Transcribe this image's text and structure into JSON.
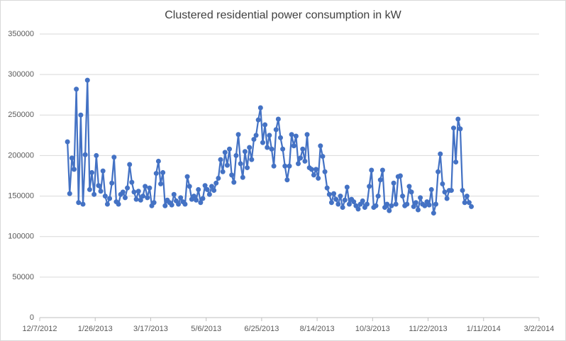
{
  "chart_data": {
    "type": "line",
    "title": "Clustered residential power consumption in kW",
    "x": [
      "1/1/2013",
      "1/3/2013",
      "1/5/2013",
      "1/7/2013",
      "1/9/2013",
      "1/11/2013",
      "1/13/2013",
      "1/15/2013",
      "1/17/2013",
      "1/19/2013",
      "1/21/2013",
      "1/23/2013",
      "1/25/2013",
      "1/27/2013",
      "1/29/2013",
      "1/31/2013",
      "2/2/2013",
      "2/4/2013",
      "2/6/2013",
      "2/8/2013",
      "2/10/2013",
      "2/12/2013",
      "2/14/2013",
      "2/16/2013",
      "2/18/2013",
      "2/20/2013",
      "2/22/2013",
      "2/24/2013",
      "2/26/2013",
      "2/28/2013",
      "3/2/2013",
      "3/4/2013",
      "3/6/2013",
      "3/8/2013",
      "3/10/2013",
      "3/12/2013",
      "3/14/2013",
      "3/16/2013",
      "3/18/2013",
      "3/20/2013",
      "3/22/2013",
      "3/24/2013",
      "3/26/2013",
      "3/28/2013",
      "3/30/2013",
      "4/1/2013",
      "4/3/2013",
      "4/5/2013",
      "4/7/2013",
      "4/9/2013",
      "4/11/2013",
      "4/13/2013",
      "4/15/2013",
      "4/17/2013",
      "4/19/2013",
      "4/21/2013",
      "4/23/2013",
      "4/25/2013",
      "4/27/2013",
      "4/29/2013",
      "5/1/2013",
      "5/3/2013",
      "5/5/2013",
      "5/7/2013",
      "5/9/2013",
      "5/11/2013",
      "5/13/2013",
      "5/15/2013",
      "5/17/2013",
      "5/19/2013",
      "5/21/2013",
      "5/23/2013",
      "5/25/2013",
      "5/27/2013",
      "5/29/2013",
      "5/31/2013",
      "6/2/2013",
      "6/4/2013",
      "6/6/2013",
      "6/8/2013",
      "6/10/2013",
      "6/12/2013",
      "6/14/2013",
      "6/16/2013",
      "6/18/2013",
      "6/20/2013",
      "6/22/2013",
      "6/24/2013",
      "6/26/2013",
      "6/28/2013",
      "6/30/2013",
      "7/2/2013",
      "7/4/2013",
      "7/6/2013",
      "7/8/2013",
      "7/10/2013",
      "7/12/2013",
      "7/14/2013",
      "7/16/2013",
      "7/18/2013",
      "7/20/2013",
      "7/22/2013",
      "7/24/2013",
      "7/26/2013",
      "7/28/2013",
      "7/30/2013",
      "8/1/2013",
      "8/3/2013",
      "8/5/2013",
      "8/7/2013",
      "8/9/2013",
      "8/11/2013",
      "8/13/2013",
      "8/15/2013",
      "8/17/2013",
      "8/19/2013",
      "8/21/2013",
      "8/23/2013",
      "8/25/2013",
      "8/27/2013",
      "8/29/2013",
      "8/31/2013",
      "9/2/2013",
      "9/4/2013",
      "9/6/2013",
      "9/8/2013",
      "9/10/2013",
      "9/12/2013",
      "9/14/2013",
      "9/16/2013",
      "9/18/2013",
      "9/20/2013",
      "9/22/2013",
      "9/24/2013",
      "9/26/2013",
      "9/28/2013",
      "9/30/2013",
      "10/2/2013",
      "10/4/2013",
      "10/6/2013",
      "10/8/2013",
      "10/10/2013",
      "10/12/2013",
      "10/14/2013",
      "10/16/2013",
      "10/18/2013",
      "10/20/2013",
      "10/22/2013",
      "10/24/2013",
      "10/26/2013",
      "10/28/2013",
      "10/30/2013",
      "11/1/2013",
      "11/3/2013",
      "11/5/2013",
      "11/7/2013",
      "11/9/2013",
      "11/11/2013",
      "11/13/2013",
      "11/15/2013",
      "11/17/2013",
      "11/19/2013",
      "11/21/2013",
      "11/23/2013",
      "11/25/2013",
      "11/27/2013",
      "11/29/2013",
      "12/1/2013",
      "12/3/2013",
      "12/5/2013",
      "12/7/2013",
      "12/9/2013",
      "12/11/2013",
      "12/13/2013",
      "12/15/2013",
      "12/17/2013",
      "12/19/2013",
      "12/21/2013",
      "12/23/2013",
      "12/25/2013",
      "12/27/2013",
      "12/29/2013",
      "12/31/2013"
    ],
    "values": [
      217000,
      153000,
      197000,
      183000,
      282000,
      142000,
      250000,
      140000,
      201000,
      293000,
      158000,
      179000,
      152000,
      200000,
      163000,
      156000,
      181000,
      150000,
      140000,
      147000,
      166000,
      198000,
      143000,
      140000,
      152000,
      155000,
      148000,
      160000,
      189000,
      167000,
      155000,
      146000,
      156000,
      145000,
      150000,
      162000,
      148000,
      160000,
      138000,
      142000,
      178000,
      193000,
      165000,
      179000,
      138000,
      145000,
      142000,
      139000,
      152000,
      144000,
      140000,
      148000,
      143000,
      140000,
      174000,
      162000,
      146000,
      150000,
      145000,
      158000,
      142000,
      147000,
      163000,
      158000,
      152000,
      162000,
      157000,
      166000,
      172000,
      195000,
      180000,
      204000,
      188000,
      208000,
      176000,
      167000,
      200000,
      226000,
      190000,
      173000,
      205000,
      185000,
      210000,
      195000,
      220000,
      225000,
      244000,
      259000,
      216000,
      238000,
      210000,
      225000,
      208000,
      187000,
      232000,
      245000,
      222000,
      208000,
      187000,
      170000,
      187000,
      226000,
      212000,
      224000,
      190000,
      197000,
      208000,
      193000,
      226000,
      185000,
      183000,
      176000,
      183000,
      172000,
      212000,
      199000,
      180000,
      160000,
      152000,
      142000,
      153000,
      146000,
      140000,
      150000,
      136000,
      145000,
      161000,
      140000,
      146000,
      143000,
      138000,
      134000,
      140000,
      144000,
      136000,
      140000,
      162000,
      182000,
      136000,
      138000,
      150000,
      170000,
      182000,
      136000,
      140000,
      132000,
      138000,
      166000,
      140000,
      174000,
      175000,
      150000,
      138000,
      140000,
      162000,
      155000,
      137000,
      142000,
      133000,
      148000,
      140000,
      138000,
      143000,
      139000,
      158000,
      129000,
      140000,
      180000,
      202000,
      165000,
      155000,
      147000,
      157000,
      157000,
      234000,
      192000,
      245000,
      233000,
      157000,
      142000,
      150000,
      142000,
      137000
    ],
    "color": "#4472c4",
    "xlim": [
      "12/7/2012",
      "3/2/2014"
    ],
    "xticks": [
      "12/7/2012",
      "1/26/2013",
      "3/17/2013",
      "5/6/2013",
      "6/25/2013",
      "8/14/2013",
      "10/3/2013",
      "11/22/2013",
      "1/11/2014",
      "3/2/2014"
    ],
    "ylim": [
      0,
      350000
    ],
    "yticks": [
      0,
      50000,
      100000,
      150000,
      200000,
      250000,
      300000,
      350000
    ],
    "grid": true
  }
}
